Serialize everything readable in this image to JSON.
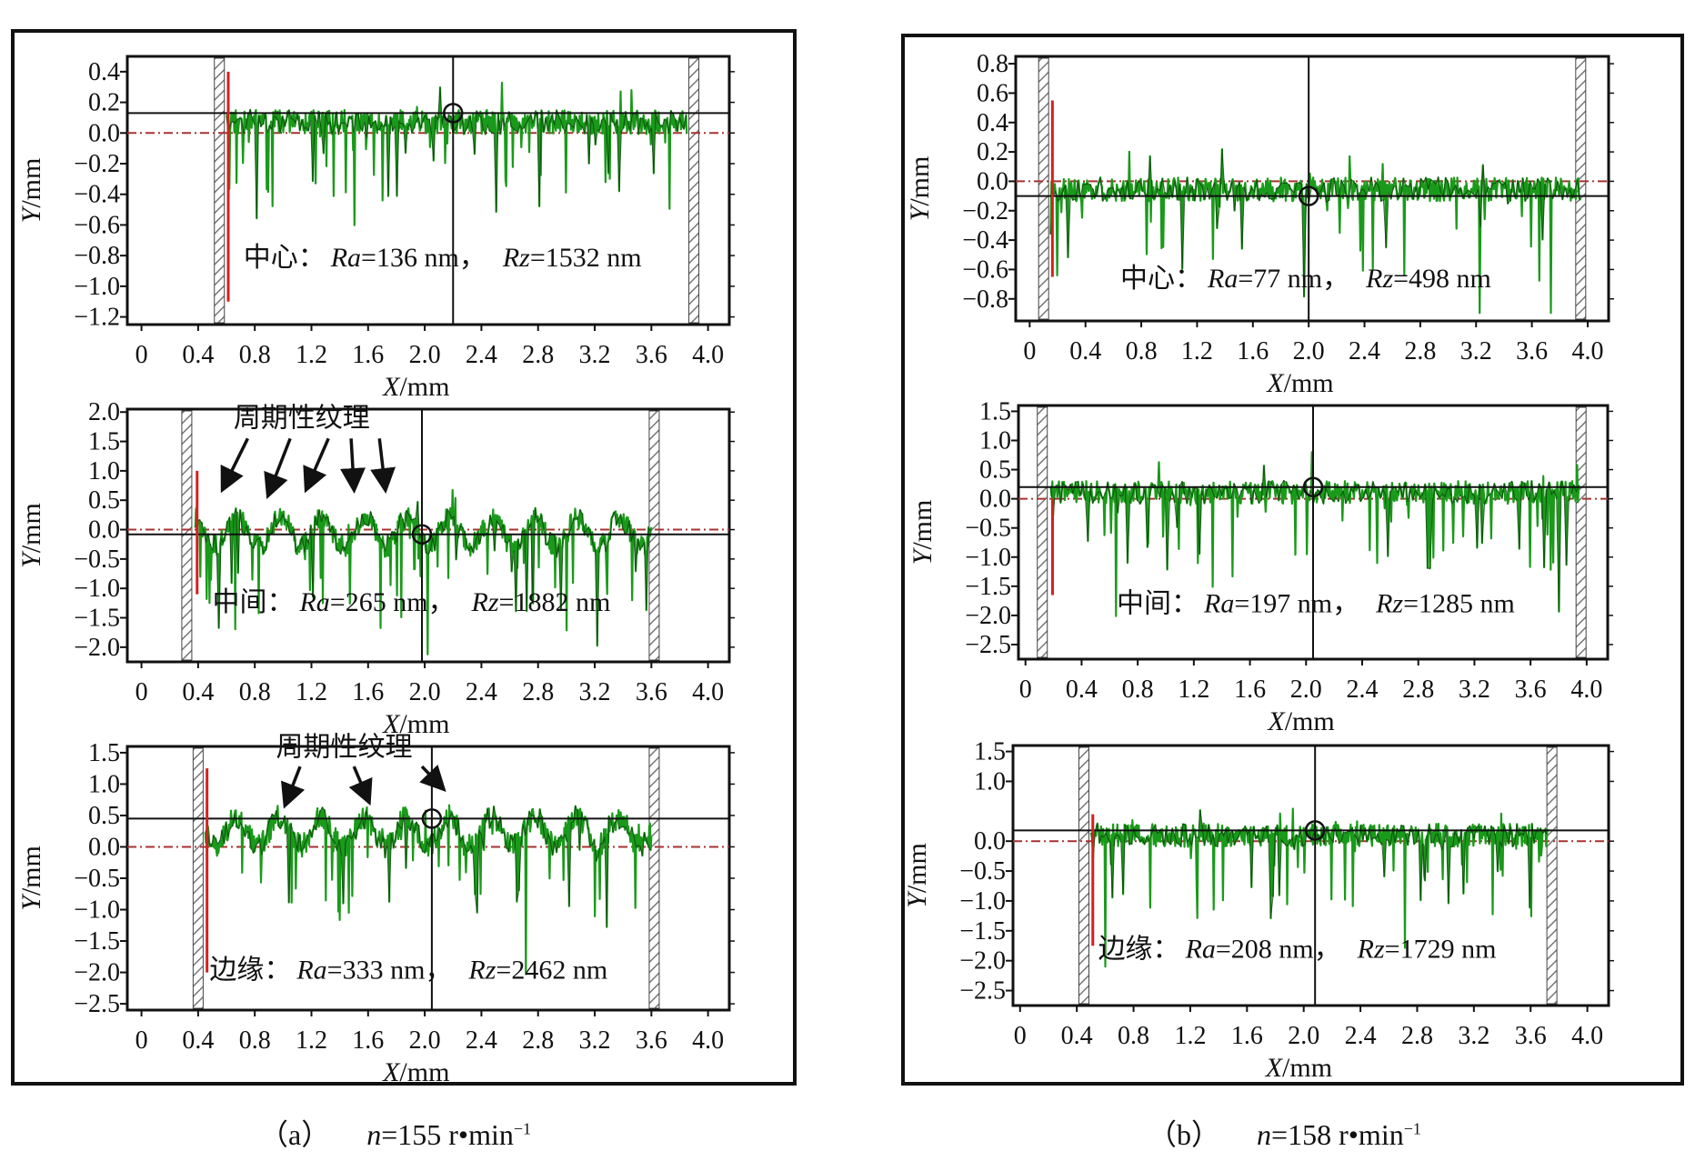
{
  "captions": {
    "a": {
      "label": "（a）",
      "var": "n",
      "text": "=155 r•min",
      "sup": "−1"
    },
    "b": {
      "label": "（b）",
      "var": "n",
      "text": "=158 r•min",
      "sup": "−1"
    }
  },
  "colors": {
    "profile": "#1a9a1a",
    "profile_dark": "#0b3d0b",
    "zero_line": "#a83232",
    "red_marker": "#d42020",
    "ref_line": "#111111",
    "hatch": "#777777"
  },
  "chart_data": [
    {
      "id": "a-center",
      "type": "line",
      "panel": "a",
      "xlabel": "X/mm",
      "ylabel": "Y/mm",
      "xlim": [
        -0.1,
        4.15
      ],
      "ylim": [
        -1.25,
        0.5
      ],
      "xticks": [
        "0",
        "0.4",
        "0.8",
        "1.2",
        "1.6",
        "2.0",
        "2.4",
        "2.8",
        "3.2",
        "3.6",
        "4.0"
      ],
      "xtick_values": [
        0,
        0.4,
        0.8,
        1.2,
        1.6,
        2.0,
        2.4,
        2.8,
        3.2,
        3.6,
        4.0
      ],
      "yticks": [
        "0.4",
        "0.2",
        "0.0",
        "−0.2",
        "−0.4",
        "−0.6",
        "−0.8",
        "−1.0",
        "−1.2"
      ],
      "ytick_values": [
        0.4,
        0.2,
        0.0,
        -0.2,
        -0.4,
        -0.6,
        -0.8,
        -1.0,
        -1.2
      ],
      "profile_x_range": [
        0.6,
        3.85
      ],
      "ref_y": 0.13,
      "cursor_x": 2.2,
      "hatch_left": 0.55,
      "hatch_right": 3.9,
      "red_marker": [
        0.0,
        0.4,
        -1.1
      ],
      "annotation": {
        "region": "中心：",
        "ra_label": "Ra",
        "ra_value": "=136 nm，",
        "rz_label": "Rz",
        "rz_value": "=1532 nm"
      },
      "label_pos": [
        0.72,
        -0.87
      ],
      "texture_label": "",
      "texture_arrows": []
    },
    {
      "id": "a-middle",
      "type": "line",
      "panel": "a",
      "xlabel": "X/mm",
      "ylabel": "Y/mm",
      "xlim": [
        -0.1,
        4.15
      ],
      "ylim": [
        -2.25,
        2.05
      ],
      "xticks": [
        "0",
        "0.4",
        "0.8",
        "1.2",
        "1.6",
        "2.0",
        "2.4",
        "2.8",
        "3.2",
        "3.6",
        "4.0"
      ],
      "xtick_values": [
        0,
        0.4,
        0.8,
        1.2,
        1.6,
        2.0,
        2.4,
        2.8,
        3.2,
        3.6,
        4.0
      ],
      "yticks": [
        "2.0",
        "1.5",
        "1.0",
        "0.5",
        "0.0",
        "−0.5",
        "−1.0",
        "−1.5",
        "−2.0"
      ],
      "ytick_values": [
        2.0,
        1.5,
        1.0,
        0.5,
        0.0,
        -0.5,
        -1.0,
        -1.5,
        -2.0
      ],
      "profile_x_range": [
        0.38,
        3.6
      ],
      "ref_y": -0.08,
      "cursor_x": 1.98,
      "hatch_left": 0.32,
      "hatch_right": 3.62,
      "red_marker": [
        0.0,
        1.0,
        -1.1
      ],
      "annotation": {
        "region": "中间：",
        "ra_label": "Ra",
        "ra_value": "=265 nm，",
        "rz_label": "Rz",
        "rz_value": "=1882 nm"
      },
      "label_pos": [
        0.5,
        -1.38
      ],
      "texture_label": "周期性纹理",
      "texture_label_pos": [
        0.65,
        1.75
      ],
      "texture_arrows": [
        [
          0.75,
          1.55,
          0.58,
          0.72
        ],
        [
          1.05,
          1.55,
          0.9,
          0.62
        ],
        [
          1.32,
          1.55,
          1.17,
          0.72
        ],
        [
          1.48,
          1.55,
          1.5,
          0.72
        ],
        [
          1.68,
          1.55,
          1.72,
          0.72
        ]
      ]
    },
    {
      "id": "a-edge",
      "type": "line",
      "panel": "a",
      "xlabel": "X/mm",
      "ylabel": "Y/mm",
      "xlim": [
        -0.1,
        4.15
      ],
      "ylim": [
        -2.6,
        1.6
      ],
      "xticks": [
        "0",
        "0.4",
        "0.8",
        "1.2",
        "1.6",
        "2.0",
        "2.4",
        "2.8",
        "3.2",
        "3.6",
        "4.0"
      ],
      "xtick_values": [
        0,
        0.4,
        0.8,
        1.2,
        1.6,
        2.0,
        2.4,
        2.8,
        3.2,
        3.6,
        4.0
      ],
      "yticks": [
        "1.5",
        "1.0",
        "0.5",
        "0.0",
        "−0.5",
        "−1.0",
        "−1.5",
        "−2.0",
        "−2.5"
      ],
      "ytick_values": [
        1.5,
        1.0,
        0.5,
        0.0,
        -0.5,
        -1.0,
        -1.5,
        -2.0,
        -2.5
      ],
      "profile_x_range": [
        0.45,
        3.6
      ],
      "ref_y": 0.45,
      "cursor_x": 2.05,
      "hatch_left": 0.4,
      "hatch_right": 3.62,
      "red_marker": [
        0.0,
        1.25,
        -2.0
      ],
      "annotation": {
        "region": "边缘：",
        "ra_label": "Ra",
        "ra_value": "=333 nm，",
        "rz_label": "Rz",
        "rz_value": "=2462 nm"
      },
      "label_pos": [
        0.48,
        -2.1
      ],
      "texture_label": "周期性纹理",
      "texture_label_pos": [
        0.95,
        1.45
      ],
      "texture_arrows": [
        [
          1.12,
          1.28,
          1.02,
          0.7
        ],
        [
          1.5,
          1.28,
          1.6,
          0.75
        ],
        [
          1.98,
          1.28,
          2.12,
          0.95
        ]
      ]
    },
    {
      "id": "b-center",
      "type": "line",
      "panel": "b",
      "xlabel": "X/mm",
      "ylabel": "Y/mm",
      "xlim": [
        -0.1,
        4.15
      ],
      "ylim": [
        -0.95,
        0.85
      ],
      "xticks": [
        "0",
        "0.4",
        "0.8",
        "1.2",
        "1.6",
        "2.0",
        "2.4",
        "2.8",
        "3.2",
        "3.6",
        "4.0"
      ],
      "xtick_values": [
        0,
        0.4,
        0.8,
        1.2,
        1.6,
        2.0,
        2.4,
        2.8,
        3.2,
        3.6,
        4.0
      ],
      "yticks": [
        "0.8",
        "0.6",
        "0.4",
        "0.2",
        "0.0",
        "−0.2",
        "−0.4",
        "−0.6",
        "−0.8"
      ],
      "ytick_values": [
        0.8,
        0.6,
        0.4,
        0.2,
        0.0,
        -0.2,
        -0.4,
        -0.6,
        -0.8
      ],
      "profile_x_range": [
        0.15,
        3.95
      ],
      "ref_y": -0.1,
      "cursor_x": 2.0,
      "hatch_left": 0.1,
      "hatch_right": 3.95,
      "red_marker": [
        0.0,
        0.55,
        -0.65
      ],
      "annotation": {
        "region": "中心：",
        "ra_label": "Ra",
        "ra_value": "=77 nm，",
        "rz_label": "Rz",
        "rz_value": "=498 nm"
      },
      "label_pos": [
        0.65,
        -0.72
      ],
      "texture_label": "",
      "texture_arrows": []
    },
    {
      "id": "b-middle",
      "type": "line",
      "panel": "b",
      "xlabel": "X/mm",
      "ylabel": "Y/mm",
      "xlim": [
        -0.05,
        4.15
      ],
      "ylim": [
        -2.75,
        1.6
      ],
      "xticks": [
        "0",
        "0.4",
        "0.8",
        "1.2",
        "1.6",
        "2.0",
        "2.4",
        "2.8",
        "3.2",
        "3.6",
        "4.0"
      ],
      "xtick_values": [
        0,
        0.4,
        0.8,
        1.2,
        1.6,
        2.0,
        2.4,
        2.8,
        3.2,
        3.6,
        4.0
      ],
      "yticks": [
        "1.5",
        "1.0",
        "0.5",
        "0.0",
        "−0.5",
        "−1.0",
        "−1.5",
        "−2.0",
        "−2.5"
      ],
      "ytick_values": [
        1.5,
        1.0,
        0.5,
        0.0,
        -0.5,
        -1.0,
        -1.5,
        -2.0,
        -2.5
      ],
      "profile_x_range": [
        0.18,
        3.95
      ],
      "ref_y": 0.2,
      "cursor_x": 2.05,
      "hatch_left": 0.12,
      "hatch_right": 3.96,
      "red_marker": [
        0.0,
        0.0,
        -1.65
      ],
      "annotation": {
        "region": "中间：",
        "ra_label": "Ra",
        "ra_value": "=197 nm，",
        "rz_label": "Rz",
        "rz_value": "=1285 nm"
      },
      "label_pos": [
        0.65,
        -1.95
      ],
      "texture_label": "",
      "texture_arrows": []
    },
    {
      "id": "b-edge",
      "type": "line",
      "panel": "b",
      "xlabel": "X/mm",
      "ylabel": "Y/mm",
      "xlim": [
        -0.05,
        4.15
      ],
      "ylim": [
        -2.75,
        1.6
      ],
      "xticks": [
        "0",
        "0.4",
        "0.8",
        "1.2",
        "1.6",
        "2.0",
        "2.4",
        "2.8",
        "3.2",
        "3.6",
        "4.0"
      ],
      "xtick_values": [
        0,
        0.4,
        0.8,
        1.2,
        1.6,
        2.0,
        2.4,
        2.8,
        3.2,
        3.6,
        4.0
      ],
      "yticks": [
        "1.5",
        "1.0",
        "0.0",
        "−0.5",
        "−1.0",
        "−1.5",
        "−2.0",
        "−2.5"
      ],
      "ytick_values": [
        1.5,
        1.0,
        0.0,
        -0.5,
        -1.0,
        -1.5,
        -2.0,
        -2.5
      ],
      "profile_x_range": [
        0.5,
        3.72
      ],
      "ref_y": 0.18,
      "cursor_x": 2.08,
      "hatch_left": 0.45,
      "hatch_right": 3.75,
      "red_marker": [
        0.0,
        0.45,
        -1.75
      ],
      "annotation": {
        "region": "边缘：",
        "ra_label": "Ra",
        "ra_value": "=208 nm，",
        "rz_label": "Rz",
        "rz_value": "=1729 nm"
      },
      "label_pos": [
        0.55,
        -1.95
      ],
      "texture_label": "",
      "texture_arrows": []
    }
  ]
}
